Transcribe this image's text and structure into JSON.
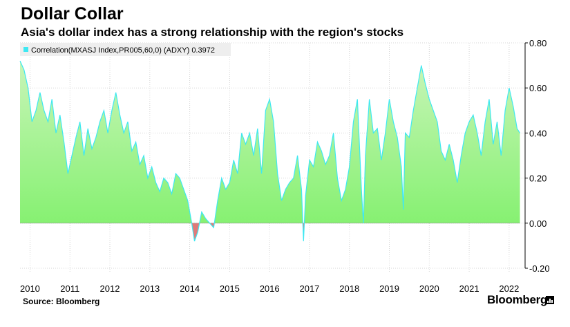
{
  "header": {
    "title": "Dollar Collar",
    "subtitle": "Asia's dollar index has a strong relationship with the region's stocks"
  },
  "footer": {
    "source": "Source: Bloomberg",
    "brand": "Bloomberg"
  },
  "colors": {
    "fill_top": "#c8f5b8",
    "fill_bottom": "#7ff06a",
    "line": "#3ee8f2",
    "negative_fill": "#e07a7a",
    "legend_swatch": "#3ee8f2"
  },
  "chart_data": {
    "type": "area",
    "title": "Dollar Collar",
    "legend": "Correlation(MXASJ Index,PR005,60,0) (ADXY) 0.3972",
    "legend_position": "top-left",
    "grid": true,
    "x_ticks": [
      "2010",
      "2011",
      "2012",
      "2013",
      "2014",
      "2015",
      "2016",
      "2017",
      "2018",
      "2019",
      "2020",
      "2021",
      "2022"
    ],
    "y_ticks": [
      "0.80",
      "0.60",
      "0.40",
      "0.20",
      "0.00",
      "-0.20"
    ],
    "y_tick_values": [
      0.8,
      0.6,
      0.4,
      0.2,
      0.0,
      -0.2
    ],
    "ylim": [
      -0.2,
      0.8
    ],
    "xlim": [
      2009.75,
      2022.4
    ],
    "last_value": 0.3972,
    "series": [
      {
        "name": "Correlation(MXASJ Index,PR005,60,0) (ADXY)",
        "x": [
          2009.75,
          2009.85,
          2009.95,
          2010.05,
          2010.15,
          2010.25,
          2010.35,
          2010.45,
          2010.55,
          2010.65,
          2010.75,
          2010.85,
          2010.95,
          2011.05,
          2011.15,
          2011.25,
          2011.35,
          2011.45,
          2011.55,
          2011.65,
          2011.75,
          2011.85,
          2011.95,
          2012.05,
          2012.15,
          2012.25,
          2012.35,
          2012.45,
          2012.55,
          2012.65,
          2012.75,
          2012.85,
          2012.95,
          2013.05,
          2013.15,
          2013.25,
          2013.35,
          2013.45,
          2013.55,
          2013.65,
          2013.75,
          2013.85,
          2013.95,
          2014.05,
          2014.12,
          2014.2,
          2014.3,
          2014.4,
          2014.5,
          2014.6,
          2014.7,
          2014.8,
          2014.9,
          2015.0,
          2015.1,
          2015.2,
          2015.3,
          2015.4,
          2015.5,
          2015.6,
          2015.7,
          2015.8,
          2015.9,
          2016.0,
          2016.1,
          2016.2,
          2016.3,
          2016.4,
          2016.5,
          2016.6,
          2016.7,
          2016.8,
          2016.85,
          2016.9,
          2017.0,
          2017.1,
          2017.2,
          2017.3,
          2017.4,
          2017.5,
          2017.6,
          2017.7,
          2017.8,
          2017.9,
          2018.0,
          2018.1,
          2018.2,
          2018.3,
          2018.35,
          2018.4,
          2018.5,
          2018.6,
          2018.7,
          2018.8,
          2018.9,
          2019.0,
          2019.1,
          2019.2,
          2019.3,
          2019.35,
          2019.4,
          2019.5,
          2019.6,
          2019.7,
          2019.8,
          2019.9,
          2020.0,
          2020.1,
          2020.2,
          2020.3,
          2020.4,
          2020.5,
          2020.6,
          2020.7,
          2020.8,
          2020.9,
          2021.0,
          2021.1,
          2021.2,
          2021.3,
          2021.4,
          2021.5,
          2021.6,
          2021.7,
          2021.8,
          2021.9,
          2022.0,
          2022.1,
          2022.2,
          2022.27
        ],
        "values": [
          0.72,
          0.68,
          0.6,
          0.45,
          0.5,
          0.58,
          0.5,
          0.45,
          0.55,
          0.4,
          0.48,
          0.36,
          0.22,
          0.3,
          0.38,
          0.45,
          0.3,
          0.42,
          0.33,
          0.38,
          0.45,
          0.5,
          0.4,
          0.5,
          0.58,
          0.48,
          0.4,
          0.45,
          0.32,
          0.36,
          0.26,
          0.3,
          0.2,
          0.25,
          0.18,
          0.14,
          0.2,
          0.18,
          0.13,
          0.22,
          0.2,
          0.15,
          0.1,
          0.0,
          -0.08,
          -0.04,
          0.05,
          0.02,
          0.0,
          -0.02,
          0.1,
          0.2,
          0.15,
          0.18,
          0.28,
          0.22,
          0.4,
          0.35,
          0.4,
          0.3,
          0.42,
          0.22,
          0.5,
          0.55,
          0.45,
          0.22,
          0.1,
          0.15,
          0.18,
          0.2,
          0.3,
          0.15,
          -0.08,
          0.12,
          0.28,
          0.25,
          0.36,
          0.32,
          0.26,
          0.3,
          0.4,
          0.2,
          0.1,
          0.15,
          0.25,
          0.45,
          0.55,
          0.15,
          0.0,
          0.3,
          0.55,
          0.4,
          0.42,
          0.28,
          0.4,
          0.55,
          0.45,
          0.38,
          0.25,
          0.06,
          0.4,
          0.38,
          0.5,
          0.6,
          0.7,
          0.62,
          0.55,
          0.5,
          0.45,
          0.32,
          0.28,
          0.35,
          0.28,
          0.18,
          0.3,
          0.4,
          0.45,
          0.48,
          0.4,
          0.3,
          0.45,
          0.55,
          0.35,
          0.45,
          0.3,
          0.5,
          0.6,
          0.52,
          0.42,
          0.4
        ]
      }
    ]
  }
}
